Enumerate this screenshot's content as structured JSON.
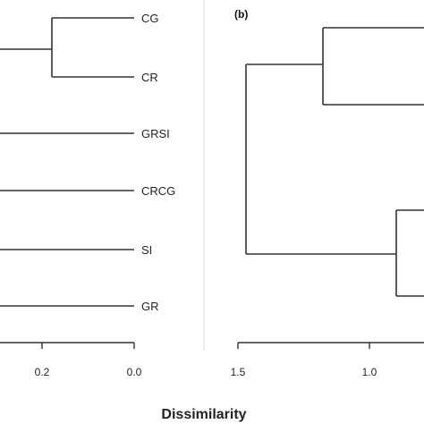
{
  "panel_a": {
    "leaves": [
      "CG",
      "CR",
      "GRSI",
      "CRCG",
      "SI",
      "GR"
    ],
    "ticks": [
      "0.2",
      "0.0"
    ]
  },
  "panel_b": {
    "label": "(b)",
    "ticks": [
      "1.5",
      "1.0"
    ]
  },
  "axis_title": "Dissimilarity",
  "colors": {
    "line": "#333333",
    "text": "#222222",
    "background": "#ffffff"
  }
}
